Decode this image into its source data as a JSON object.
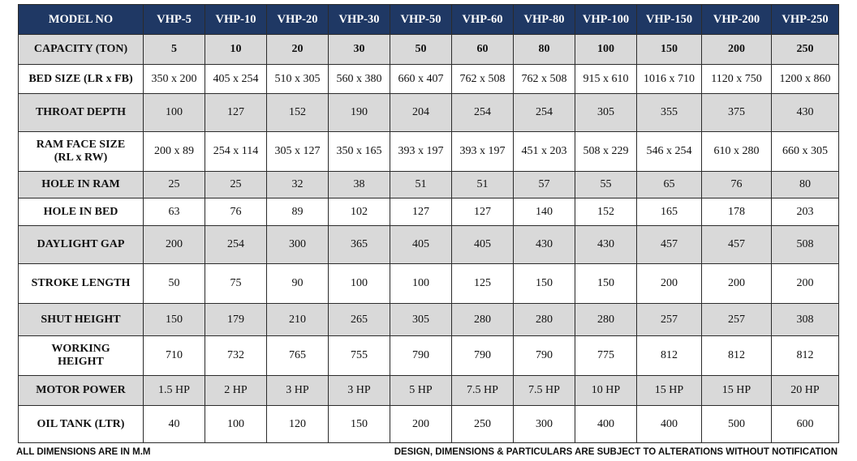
{
  "header": [
    "MODEL NO",
    "VHP-5",
    "VHP-10",
    "VHP-20",
    "VHP-30",
    "VHP-50",
    "VHP-60",
    "VHP-80",
    "VHP-100",
    "VHP-150",
    "VHP-200",
    "VHP-250"
  ],
  "rows": [
    {
      "label": "CAPACITY (TON)",
      "values": [
        "5",
        "10",
        "20",
        "30",
        "50",
        "60",
        "80",
        "100",
        "150",
        "200",
        "250"
      ]
    },
    {
      "label": "BED SIZE (LR x FB)",
      "values": [
        "350 x 200",
        "405 x 254",
        "510 x 305",
        "560 x 380",
        "660 x 407",
        "762 x 508",
        "762 x 508",
        "915 x 610",
        "1016 x 710",
        "1120 x 750",
        "1200 x 860"
      ]
    },
    {
      "label": "THROAT DEPTH",
      "values": [
        "100",
        "127",
        "152",
        "190",
        "204",
        "254",
        "254",
        "305",
        "355",
        "375",
        "430"
      ]
    },
    {
      "label": "RAM FACE SIZE\n(RL x RW)",
      "values": [
        "200 x 89",
        "254 x 114",
        "305 x 127",
        "350 x 165",
        "393 x 197",
        "393 x 197",
        "451 x 203",
        "508 x 229",
        "546 x 254",
        "610 x 280",
        "660 x 305"
      ]
    },
    {
      "label": "HOLE IN RAM",
      "values": [
        "25",
        "25",
        "32",
        "38",
        "51",
        "51",
        "57",
        "55",
        "65",
        "76",
        "80"
      ]
    },
    {
      "label": "HOLE IN BED",
      "values": [
        "63",
        "76",
        "89",
        "102",
        "127",
        "127",
        "140",
        "152",
        "165",
        "178",
        "203"
      ]
    },
    {
      "label": "DAYLIGHT GAP",
      "values": [
        "200",
        "254",
        "300",
        "365",
        "405",
        "405",
        "430",
        "430",
        "457",
        "457",
        "508"
      ]
    },
    {
      "label": "STROKE LENGTH",
      "values": [
        "50",
        "75",
        "90",
        "100",
        "100",
        "125",
        "150",
        "150",
        "200",
        "200",
        "200"
      ]
    },
    {
      "label": "SHUT HEIGHT",
      "values": [
        "150",
        "179",
        "210",
        "265",
        "305",
        "280",
        "280",
        "280",
        "257",
        "257",
        "308"
      ]
    },
    {
      "label": "WORKING\nHEIGHT",
      "values": [
        "710",
        "732",
        "765",
        "755",
        "790",
        "790",
        "790",
        "775",
        "812",
        "812",
        "812"
      ]
    },
    {
      "label": "MOTOR POWER",
      "values": [
        "1.5 HP",
        "2 HP",
        "3 HP",
        "3 HP",
        "5 HP",
        "7.5 HP",
        "7.5 HP",
        "10 HP",
        "15 HP",
        "15 HP",
        "20 HP"
      ]
    },
    {
      "label": "OIL TANK (LTR)",
      "values": [
        "40",
        "100",
        "120",
        "150",
        "200",
        "250",
        "300",
        "400",
        "400",
        "500",
        "600"
      ]
    }
  ],
  "footer": {
    "left": "ALL DIMENSIONS ARE IN M.M",
    "right": "DESIGN, DIMENSIONS & PARTICULARS ARE SUBJECT TO ALTERATIONS WITHOUT NOTIFICATION"
  }
}
